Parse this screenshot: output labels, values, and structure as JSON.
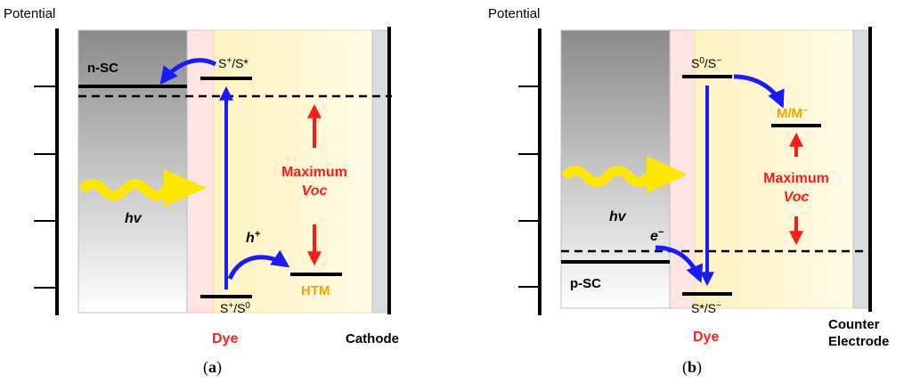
{
  "panel_a": {
    "axis_title": "Potential",
    "n_sc": "n-SC",
    "dye_excited_pre": "S",
    "dye_excited_sup": "+",
    "dye_excited_post": "/S*",
    "dye_ground_pre": "S",
    "dye_ground_sup1": "+",
    "dye_ground_mid": "/S",
    "dye_ground_sup2": "0",
    "hv": "hv",
    "hole": "h",
    "hole_sup": "+",
    "max_line1": "Maximum",
    "max_line2": "Voc",
    "htm": "HTM",
    "dye": "Dye",
    "cathode": "Cathode",
    "caption_open": "(",
    "caption_letter": "a",
    "caption_close": ")"
  },
  "panel_b": {
    "axis_title": "Potential",
    "dye_top_pre": "S",
    "dye_top_sup1": "0",
    "dye_top_mid": "/S",
    "dye_top_sup2": "−",
    "mediator_pre": "M/M",
    "mediator_sup": "−",
    "max_line1": "Maximum",
    "max_line2": "Voc",
    "hv": "hv",
    "electron": "e",
    "electron_sup": "−",
    "p_sc": "p-SC",
    "dye_bottom_pre": "S*/S",
    "dye_bottom_sup": "−",
    "dye": "Dye",
    "counter_line1": "Counter",
    "counter_line2": "Electrode",
    "caption_open": "(",
    "caption_letter": "b",
    "caption_close": ")"
  },
  "colors": {
    "blue_arrow": "#1a1aff",
    "red_arrow": "#ff1a1a",
    "yellow_wave": "#ffe800",
    "orange_label": "#f5a400",
    "dye_red": "#ff2020"
  }
}
